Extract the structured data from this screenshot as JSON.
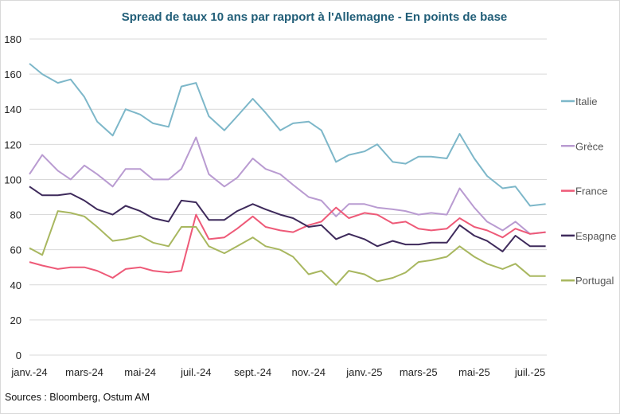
{
  "chart_data": {
    "type": "line",
    "title": "Spread de taux 10 ans par rapport à l'Allemagne - En points de base",
    "xlabel": "",
    "ylabel": "",
    "ylim": [
      0,
      180
    ],
    "yticks": [
      "0",
      "20",
      "40",
      "60",
      "80",
      "100",
      "120",
      "140",
      "160",
      "180"
    ],
    "xticks": [
      {
        "label": "janv.-24",
        "date": "2024-01-01"
      },
      {
        "label": "mars-24",
        "date": "2024-03-01"
      },
      {
        "label": "mai-24",
        "date": "2024-05-01"
      },
      {
        "label": "juil.-24",
        "date": "2024-07-01"
      },
      {
        "label": "sept.-24",
        "date": "2024-09-01"
      },
      {
        "label": "nov.-24",
        "date": "2024-11-01"
      },
      {
        "label": "janv.-25",
        "date": "2025-01-01"
      },
      {
        "label": "mars-25",
        "date": "2025-03-01"
      },
      {
        "label": "mai-25",
        "date": "2025-05-01"
      },
      {
        "label": "juil.-25",
        "date": "2025-07-01"
      }
    ],
    "grid": true,
    "legend": "right",
    "x": [
      "2024-01-01",
      "2024-01-15",
      "2024-02-01",
      "2024-02-15",
      "2024-03-01",
      "2024-03-15",
      "2024-04-01",
      "2024-04-15",
      "2024-05-01",
      "2024-05-15",
      "2024-06-01",
      "2024-06-15",
      "2024-07-01",
      "2024-07-15",
      "2024-08-01",
      "2024-08-15",
      "2024-09-01",
      "2024-09-15",
      "2024-10-01",
      "2024-10-15",
      "2024-11-01",
      "2024-11-15",
      "2024-12-01",
      "2024-12-15",
      "2025-01-01",
      "2025-01-15",
      "2025-02-01",
      "2025-02-15",
      "2025-03-01",
      "2025-03-15",
      "2025-04-01",
      "2025-04-15",
      "2025-05-01",
      "2025-05-15",
      "2025-06-01",
      "2025-06-15",
      "2025-07-01",
      "2025-07-18"
    ],
    "series": [
      {
        "name": "Italie",
        "color": "#7db7c9",
        "values": [
          166,
          160,
          155,
          157,
          147,
          133,
          125,
          140,
          137,
          132,
          130,
          153,
          155,
          136,
          128,
          136,
          146,
          138,
          128,
          132,
          133,
          128,
          110,
          114,
          116,
          120,
          110,
          109,
          113,
          113,
          112,
          126,
          112,
          102,
          95,
          96,
          85,
          86
        ]
      },
      {
        "name": "Grèce",
        "color": "#b99bd1",
        "values": [
          103,
          114,
          105,
          100,
          108,
          103,
          96,
          106,
          106,
          100,
          100,
          106,
          124,
          103,
          96,
          101,
          112,
          106,
          103,
          97,
          90,
          88,
          79,
          86,
          86,
          84,
          83,
          82,
          80,
          81,
          80,
          95,
          84,
          76,
          71,
          76,
          69,
          70
        ]
      },
      {
        "name": "France",
        "color": "#ee5a78",
        "values": [
          53,
          51,
          49,
          50,
          50,
          48,
          44,
          49,
          50,
          48,
          47,
          48,
          80,
          66,
          67,
          72,
          79,
          73,
          71,
          70,
          74,
          76,
          84,
          78,
          81,
          80,
          75,
          76,
          72,
          71,
          72,
          78,
          73,
          71,
          67,
          72,
          69,
          70
        ]
      },
      {
        "name": "Espagne",
        "color": "#3e2a5b",
        "values": [
          96,
          91,
          91,
          92,
          88,
          83,
          80,
          85,
          82,
          78,
          76,
          88,
          87,
          77,
          77,
          82,
          86,
          83,
          80,
          78,
          73,
          74,
          66,
          69,
          66,
          62,
          65,
          63,
          63,
          64,
          64,
          74,
          68,
          65,
          59,
          68,
          62,
          62
        ]
      },
      {
        "name": "Portugal",
        "color": "#a8b75f",
        "values": [
          61,
          57,
          82,
          81,
          79,
          73,
          65,
          66,
          68,
          64,
          62,
          73,
          73,
          62,
          58,
          62,
          67,
          62,
          60,
          56,
          46,
          48,
          40,
          48,
          46,
          42,
          44,
          47,
          53,
          54,
          56,
          62,
          56,
          52,
          49,
          52,
          45,
          45
        ]
      }
    ]
  },
  "footer": {
    "source": "Sources : Bloomberg, Ostum AM"
  }
}
